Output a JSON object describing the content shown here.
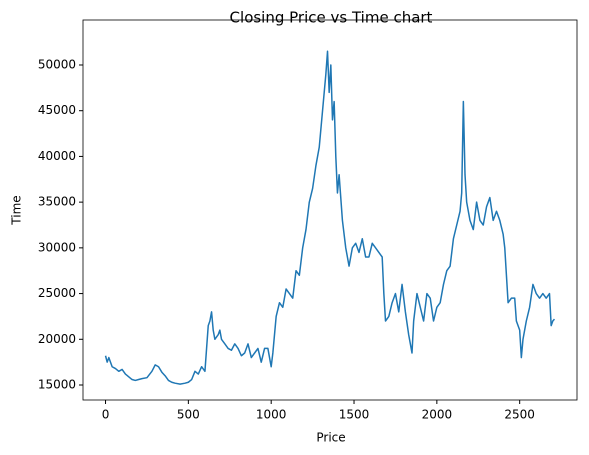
{
  "chart_data": {
    "type": "line",
    "title": "Closing Price vs Time chart",
    "x_label": "Price",
    "y_label": "Time",
    "color": "#1f77b4",
    "x": [
      0,
      10,
      20,
      40,
      60,
      80,
      100,
      120,
      140,
      160,
      180,
      200,
      220,
      250,
      280,
      300,
      320,
      340,
      360,
      380,
      400,
      420,
      450,
      480,
      500,
      520,
      540,
      560,
      580,
      600,
      610,
      620,
      630,
      640,
      650,
      660,
      680,
      690,
      700,
      720,
      740,
      760,
      780,
      800,
      820,
      840,
      860,
      880,
      900,
      920,
      940,
      960,
      980,
      1000,
      1010,
      1030,
      1050,
      1070,
      1090,
      1110,
      1130,
      1150,
      1170,
      1190,
      1210,
      1230,
      1250,
      1270,
      1290,
      1310,
      1330,
      1340,
      1350,
      1360,
      1370,
      1380,
      1390,
      1400,
      1410,
      1430,
      1450,
      1470,
      1490,
      1510,
      1530,
      1550,
      1570,
      1590,
      1610,
      1630,
      1650,
      1670,
      1680,
      1690,
      1710,
      1730,
      1750,
      1770,
      1790,
      1810,
      1830,
      1850,
      1860,
      1880,
      1900,
      1920,
      1940,
      1960,
      1980,
      2000,
      2020,
      2040,
      2060,
      2080,
      2100,
      2120,
      2140,
      2150,
      2160,
      2170,
      2180,
      2200,
      2220,
      2240,
      2260,
      2280,
      2300,
      2320,
      2340,
      2360,
      2380,
      2400,
      2410,
      2420,
      2430,
      2450,
      2470,
      2480,
      2500,
      2510,
      2520,
      2540,
      2560,
      2580,
      2600,
      2620,
      2640,
      2660,
      2680,
      2690,
      2700,
      2710
    ],
    "values": [
      18200,
      17500,
      18000,
      17000,
      16800,
      16500,
      16700,
      16200,
      15900,
      15600,
      15500,
      15600,
      15700,
      15800,
      16500,
      17200,
      17000,
      16400,
      16000,
      15500,
      15300,
      15200,
      15100,
      15200,
      15300,
      15600,
      16500,
      16200,
      17000,
      16500,
      19000,
      21500,
      22000,
      23000,
      21000,
      20000,
      20500,
      21000,
      20000,
      19500,
      19000,
      18800,
      19500,
      19000,
      18200,
      18500,
      19500,
      18000,
      18500,
      19000,
      17500,
      19000,
      19000,
      17000,
      18500,
      22500,
      24000,
      23500,
      25500,
      25000,
      24500,
      27500,
      27000,
      30000,
      32000,
      35000,
      36500,
      39000,
      41000,
      45000,
      49000,
      51500,
      47000,
      50000,
      44000,
      46000,
      40000,
      36000,
      38000,
      33000,
      30000,
      28000,
      30000,
      30500,
      29500,
      31000,
      29000,
      29000,
      30500,
      30000,
      29500,
      29000,
      25000,
      22000,
      22500,
      24000,
      25000,
      23000,
      26000,
      23000,
      20500,
      18500,
      22000,
      25000,
      23500,
      22000,
      25000,
      24500,
      22000,
      23500,
      24000,
      26000,
      27500,
      28000,
      31000,
      32500,
      34000,
      36000,
      46000,
      38000,
      35000,
      33000,
      32000,
      35000,
      33000,
      32500,
      34500,
      35500,
      33000,
      34000,
      33000,
      31500,
      30000,
      27000,
      24000,
      24500,
      24500,
      22000,
      21000,
      18000,
      20000,
      22000,
      23500,
      26000,
      25000,
      24500,
      25000,
      24500,
      25000,
      21500,
      22000,
      22200
    ],
    "xlim": [
      -136,
      2846
    ],
    "ylim": [
      13360,
      54920
    ],
    "xticks": [
      0,
      500,
      1000,
      1500,
      2000,
      2500
    ],
    "yticks": [
      15000,
      20000,
      25000,
      30000,
      35000,
      40000,
      45000,
      50000
    ]
  }
}
